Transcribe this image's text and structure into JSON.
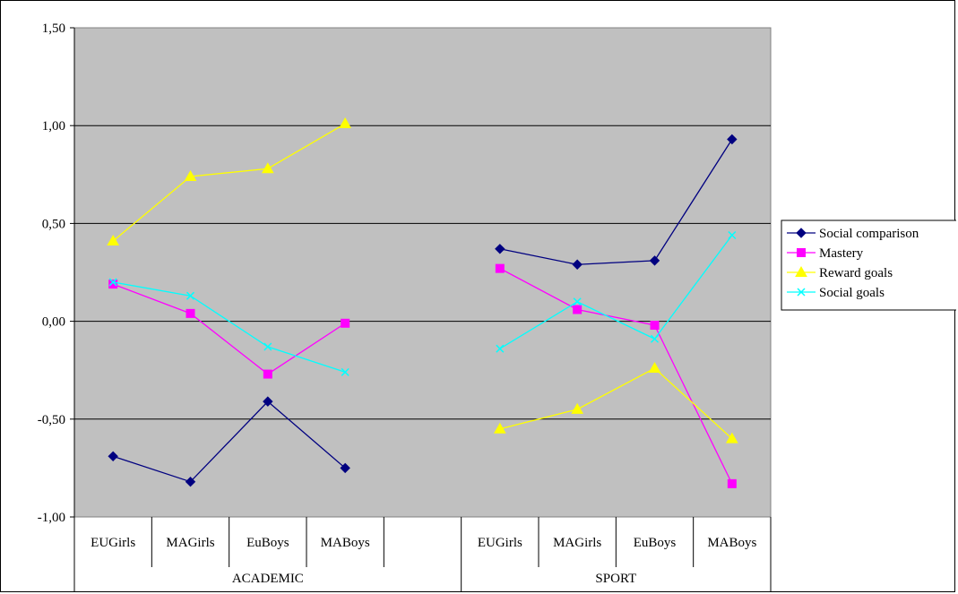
{
  "chart_data": {
    "type": "line",
    "title": "",
    "xlabel": "",
    "ylabel": "",
    "ylim": [
      -1.0,
      1.5
    ],
    "yticks": [
      "-1,00",
      "-0,50",
      "0,00",
      "0,50",
      "1,00",
      "1,50"
    ],
    "ytick_values": [
      -1.0,
      -0.5,
      0.0,
      0.5,
      1.0,
      1.5
    ],
    "grid": true,
    "legend_placement": "right",
    "categories": [
      "EUGirls",
      "MAGirls",
      "EuBoys",
      "MABoys",
      "",
      "EUGirls",
      "MAGirls",
      "EuBoys",
      "MABoys"
    ],
    "groups": [
      {
        "label": "ACADEMIC",
        "start": 0,
        "end": 4
      },
      {
        "label": "SPORT",
        "start": 5,
        "end": 8
      }
    ],
    "series": [
      {
        "name": "Social comparison",
        "color": "#000080",
        "marker": "diamond",
        "values": [
          -0.69,
          -0.82,
          -0.41,
          -0.75,
          null,
          0.37,
          0.29,
          0.31,
          0.93
        ]
      },
      {
        "name": "Mastery",
        "color": "#ff00ff",
        "marker": "square",
        "values": [
          0.19,
          0.04,
          -0.27,
          -0.01,
          null,
          0.27,
          0.06,
          -0.02,
          -0.83
        ]
      },
      {
        "name": "Reward goals",
        "color": "#ffff00",
        "marker": "triangle",
        "values": [
          0.41,
          0.74,
          0.78,
          1.01,
          null,
          -0.55,
          -0.45,
          -0.24,
          -0.6
        ]
      },
      {
        "name": "Social goals",
        "color": "#00ffff",
        "marker": "x",
        "values": [
          0.2,
          0.13,
          -0.13,
          -0.26,
          null,
          -0.14,
          0.1,
          -0.09,
          0.44
        ]
      }
    ]
  }
}
